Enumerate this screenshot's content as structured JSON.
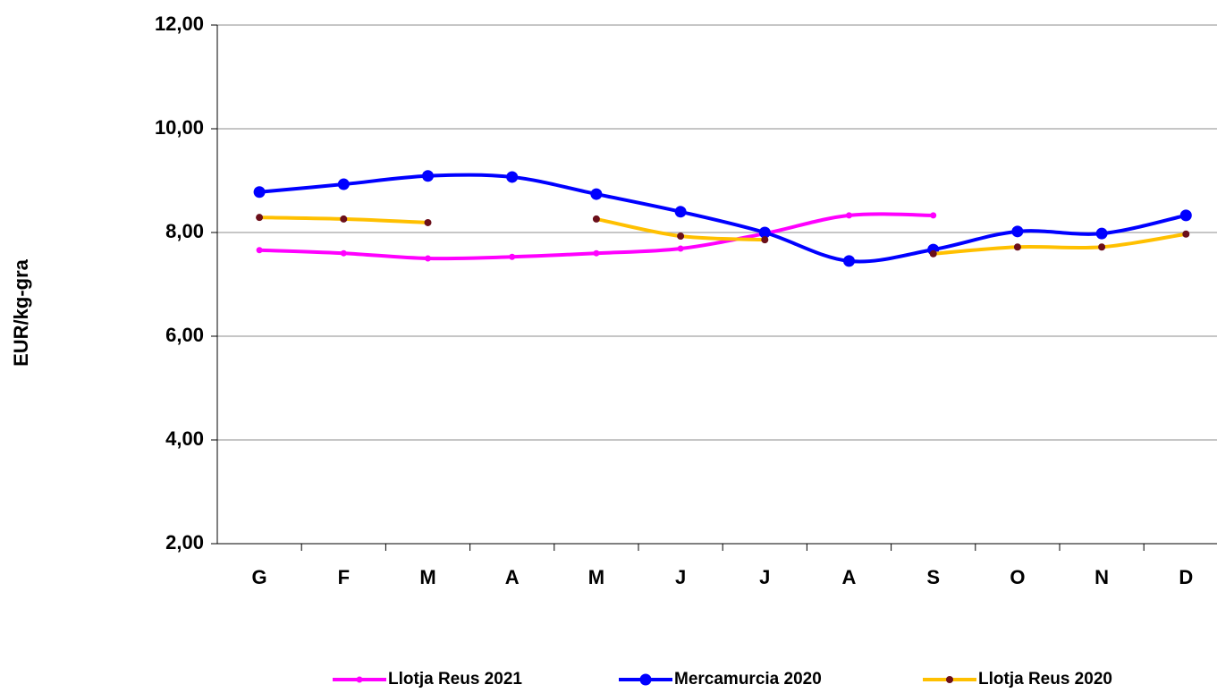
{
  "chart_data": {
    "type": "line",
    "y_label": "EUR/kg-gra",
    "categories": [
      "G",
      "F",
      "M",
      "A",
      "M",
      "J",
      "J",
      "A",
      "S",
      "O",
      "N",
      "D"
    ],
    "series": [
      {
        "name": "Llotja Reus 2021",
        "color": "#ff00ff",
        "marker_color": "#ff00ff",
        "marker_size": 3.5,
        "values": [
          7.66,
          7.6,
          7.5,
          7.53,
          7.6,
          7.69,
          7.98,
          8.33,
          8.33,
          null,
          null,
          null
        ]
      },
      {
        "name": "Mercamurcia 2020",
        "color": "#0000ff",
        "marker_color": "#0000ff",
        "marker_size": 6.5,
        "values": [
          8.78,
          8.93,
          9.09,
          9.07,
          8.74,
          8.4,
          8.0,
          7.45,
          7.67,
          8.02,
          7.98,
          8.33
        ]
      },
      {
        "name": "Llotja Reus 2020",
        "color": "#ffc000",
        "marker_color": "#6b0f1a",
        "marker_size": 4,
        "values": [
          8.29,
          8.26,
          8.19,
          null,
          8.26,
          7.93,
          7.86,
          null,
          7.59,
          7.72,
          7.72,
          7.97
        ]
      }
    ],
    "ylim": [
      2,
      12
    ],
    "yticks": [
      {
        "value": 2,
        "label": "2,00"
      },
      {
        "value": 4,
        "label": "4,00"
      },
      {
        "value": 6,
        "label": "6,00"
      },
      {
        "value": 8,
        "label": "8,00"
      },
      {
        "value": 10,
        "label": "10,00"
      },
      {
        "value": 12,
        "label": "12,00"
      }
    ],
    "grid": true,
    "legend": "bottom",
    "smooth": true
  }
}
